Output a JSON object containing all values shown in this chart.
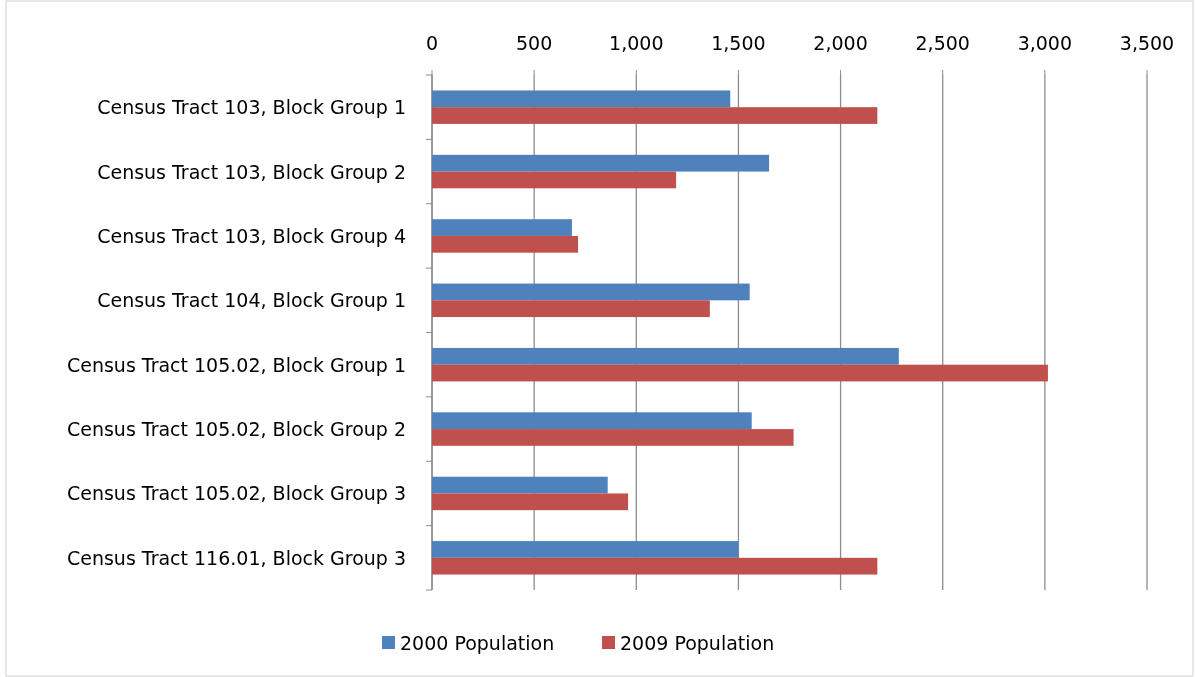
{
  "chart_data": {
    "type": "bar",
    "orientation": "horizontal",
    "categories": [
      "Census Tract 103, Block Group 1",
      "Census Tract 103, Block Group 2",
      "Census Tract 103, Block Group 4",
      "Census Tract 104, Block Group 1",
      "Census Tract 105.02, Block Group 1",
      "Census Tract 105.02, Block Group 2",
      "Census Tract 105.02, Block Group 3",
      "Census Tract 116.01, Block Group 3"
    ],
    "series": [
      {
        "name": "2000 Population",
        "color": "#4f81bd",
        "values": [
          1460,
          1650,
          685,
          1555,
          2285,
          1565,
          860,
          1500
        ]
      },
      {
        "name": "2009 Population",
        "color": "#c0504d",
        "values": [
          2180,
          1195,
          715,
          1360,
          3015,
          1770,
          960,
          2180
        ]
      }
    ],
    "xlim": [
      0,
      3500
    ],
    "xticks": [
      {
        "value": 0,
        "label": "0"
      },
      {
        "value": 500,
        "label": "500"
      },
      {
        "value": 1000,
        "label": "1,000"
      },
      {
        "value": 1500,
        "label": "1,500"
      },
      {
        "value": 2000,
        "label": "2,000"
      },
      {
        "value": 2500,
        "label": "2,500"
      },
      {
        "value": 3000,
        "label": "3,000"
      },
      {
        "value": 3500,
        "label": "3,500"
      }
    ],
    "grid": "x",
    "legend": "bottom"
  }
}
